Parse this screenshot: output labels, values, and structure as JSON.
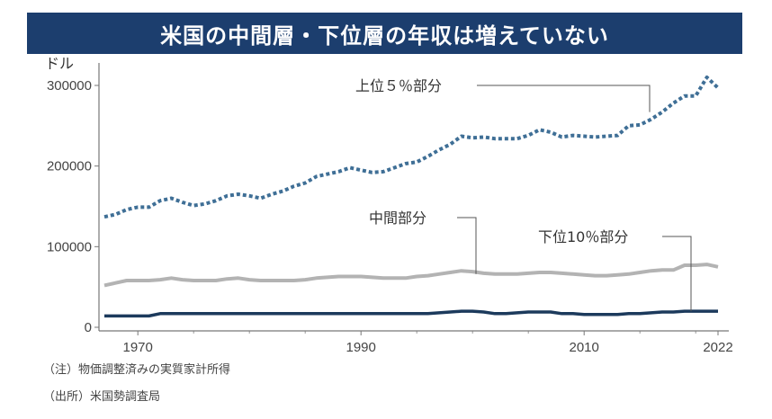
{
  "chart_data": {
    "type": "line",
    "title": "米国の中間層・下位層の年収は増えていない",
    "ylabel": "ドル",
    "xlabel": "",
    "xlim": [
      1967,
      2022
    ],
    "ylim": [
      0,
      320000
    ],
    "y_ticks": [
      "0",
      "100000",
      "200000",
      "300000"
    ],
    "x_ticks": [
      "1970",
      "1990",
      "2010",
      "2022"
    ],
    "series": [
      {
        "name": "上位５％部分",
        "style": "dotted",
        "color": "#3f6f96",
        "x": [
          1967,
          1968,
          1969,
          1970,
          1971,
          1972,
          1973,
          1974,
          1975,
          1976,
          1977,
          1978,
          1979,
          1980,
          1981,
          1982,
          1983,
          1984,
          1985,
          1986,
          1987,
          1988,
          1989,
          1990,
          1991,
          1992,
          1993,
          1994,
          1995,
          1996,
          1997,
          1998,
          1999,
          2000,
          2001,
          2002,
          2003,
          2004,
          2005,
          2006,
          2007,
          2008,
          2009,
          2010,
          2011,
          2012,
          2013,
          2014,
          2015,
          2016,
          2017,
          2018,
          2019,
          2020,
          2021,
          2022
        ],
        "values": [
          137000,
          140000,
          146000,
          149000,
          149000,
          157000,
          160000,
          155000,
          151000,
          153000,
          157000,
          163000,
          165000,
          163000,
          160000,
          165000,
          169000,
          175000,
          179000,
          187000,
          190000,
          193000,
          198000,
          195000,
          192000,
          193000,
          198000,
          203000,
          205000,
          212000,
          220000,
          227000,
          237000,
          235000,
          236000,
          234000,
          234000,
          234000,
          238000,
          245000,
          242000,
          236000,
          238000,
          237000,
          236000,
          237000,
          238000,
          250000,
          251000,
          258000,
          267000,
          278000,
          287000,
          287000,
          310000,
          297000
        ]
      },
      {
        "name": "中間部分",
        "style": "solid",
        "color": "#b3b3b3",
        "x": [
          1967,
          1968,
          1969,
          1970,
          1971,
          1972,
          1973,
          1974,
          1975,
          1976,
          1977,
          1978,
          1979,
          1980,
          1981,
          1982,
          1983,
          1984,
          1985,
          1986,
          1987,
          1988,
          1989,
          1990,
          1991,
          1992,
          1993,
          1994,
          1995,
          1996,
          1997,
          1998,
          1999,
          2000,
          2001,
          2002,
          2003,
          2004,
          2005,
          2006,
          2007,
          2008,
          2009,
          2010,
          2011,
          2012,
          2013,
          2014,
          2015,
          2016,
          2017,
          2018,
          2019,
          2020,
          2021,
          2022
        ],
        "values": [
          52000,
          55000,
          58000,
          58000,
          58000,
          59000,
          61000,
          59000,
          58000,
          58000,
          58000,
          60000,
          61000,
          59000,
          58000,
          58000,
          58000,
          58000,
          59000,
          61000,
          62000,
          63000,
          63000,
          63000,
          62000,
          61000,
          61000,
          61000,
          63000,
          64000,
          66000,
          68000,
          70000,
          69000,
          67000,
          66000,
          66000,
          66000,
          67000,
          68000,
          68000,
          67000,
          66000,
          65000,
          64000,
          64000,
          65000,
          66000,
          68000,
          70000,
          71000,
          71000,
          77000,
          77000,
          78000,
          75000
        ]
      },
      {
        "name": "下位10％部分",
        "style": "solid",
        "color": "#1c3a5c",
        "x": [
          1967,
          1970,
          1971,
          1972,
          1980,
          1990,
          1996,
          1997,
          1998,
          1999,
          2000,
          2001,
          2002,
          2003,
          2004,
          2005,
          2006,
          2007,
          2008,
          2009,
          2010,
          2011,
          2012,
          2013,
          2014,
          2015,
          2016,
          2017,
          2018,
          2019,
          2020,
          2021,
          2022
        ],
        "values": [
          14000,
          14000,
          14000,
          17000,
          17000,
          17000,
          17000,
          18000,
          19000,
          20000,
          20000,
          19000,
          17000,
          17000,
          18000,
          19000,
          19000,
          19000,
          17000,
          17000,
          16000,
          16000,
          16000,
          16000,
          17000,
          17000,
          18000,
          19000,
          19000,
          20000,
          20000,
          20000,
          20000
        ]
      }
    ]
  },
  "notes": {
    "note": "（注）物価調整済みの実質家計所得",
    "source": "（出所）米国勢調査局"
  },
  "colors": {
    "title_bg": "#1c3e6e"
  }
}
